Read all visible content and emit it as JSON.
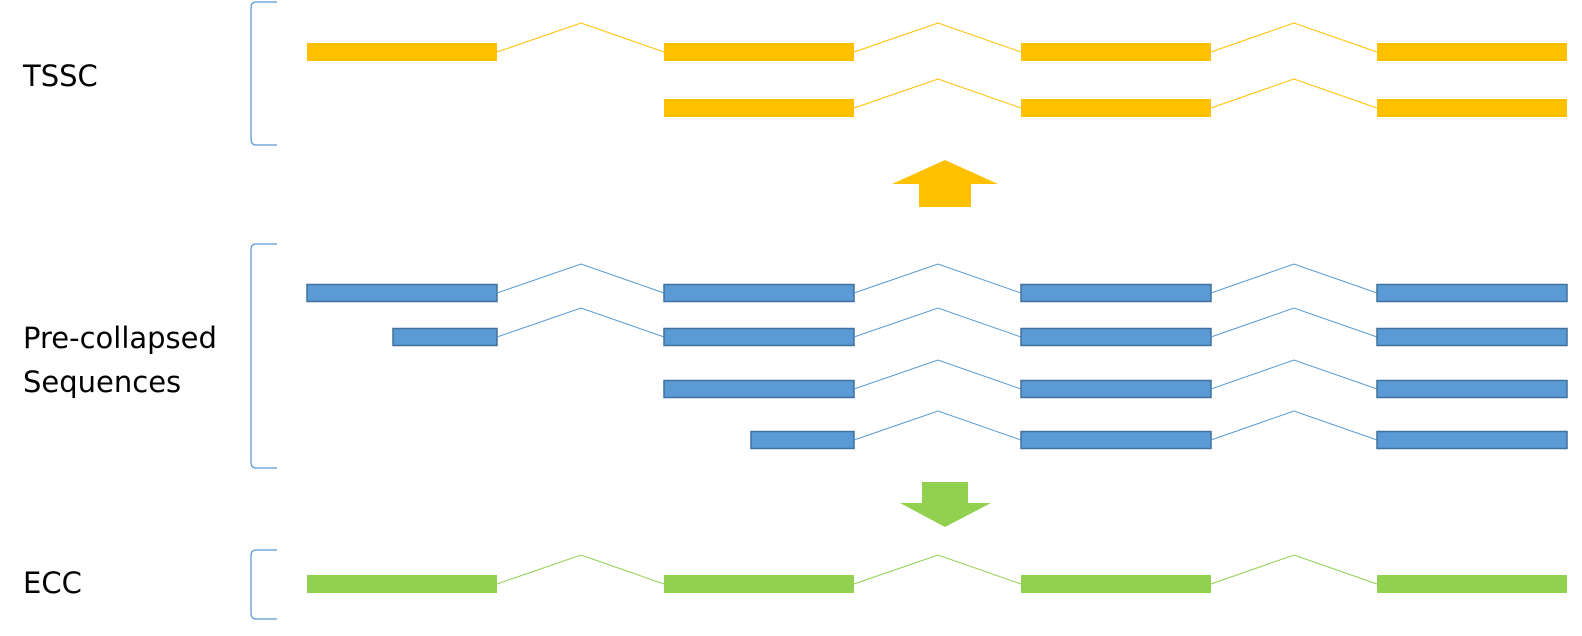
{
  "groups": [
    {
      "label": [
        "TSSC"
      ]
    },
    {
      "label": [
        "Pre-collapsed",
        "Sequences"
      ]
    },
    {
      "label": [
        "ECC"
      ]
    }
  ]
}
